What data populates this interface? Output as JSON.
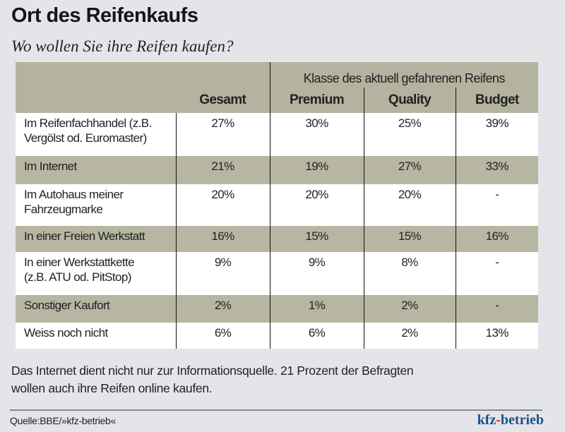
{
  "title": "Ort des Reifenkaufs",
  "subtitle": "Wo wollen Sie ihre Reifen kaufen?",
  "chart_data": {
    "type": "table",
    "group_header": "Klasse des aktuell gefahrenen Reifens",
    "columns": [
      "Gesamt",
      "Premium",
      "Quality",
      "Budget"
    ],
    "rows": [
      {
        "label": [
          "Im Reifenfachhandel (z.B.",
          "Vergölst od. Euromaster)"
        ],
        "values": [
          "27%",
          "30%",
          "25%",
          "39%"
        ]
      },
      {
        "label": [
          "Im Internet"
        ],
        "values": [
          "21%",
          "19%",
          "27%",
          "33%"
        ]
      },
      {
        "label": [
          "Im Autohaus meiner",
          "Fahrzeugmarke"
        ],
        "values": [
          "20%",
          "20%",
          "20%",
          "-"
        ]
      },
      {
        "label": [
          "In einer Freien Werkstatt"
        ],
        "values": [
          "16%",
          "15%",
          "15%",
          "16%"
        ]
      },
      {
        "label": [
          "In einer Werkstattkette",
          "(z.B. ATU od. PitStop)"
        ],
        "values": [
          "9%",
          "9%",
          "8%",
          "-"
        ]
      },
      {
        "label": [
          "Sonstiger Kaufort"
        ],
        "values": [
          "2%",
          "1%",
          "2%",
          "-"
        ]
      },
      {
        "label": [
          "Weiss noch nicht"
        ],
        "values": [
          "6%",
          "6%",
          "2%",
          "13%"
        ]
      }
    ]
  },
  "note": [
    "Das Internet dient nicht nur zur Informationsquelle. 21 Prozent der Befragten",
    "wollen auch ihre Reifen online kaufen."
  ],
  "source": "Quelle:BBE/»kfz-betrieb«",
  "logo": {
    "part1": "kfz",
    "dash": "-",
    "part2": "betrieb"
  },
  "colors": {
    "background": "#e3e5e8",
    "header": "#b3b39f",
    "alt_row": "#b6b6a3",
    "logo_blue": "#1e4f8f",
    "logo_red": "#d21f26"
  }
}
